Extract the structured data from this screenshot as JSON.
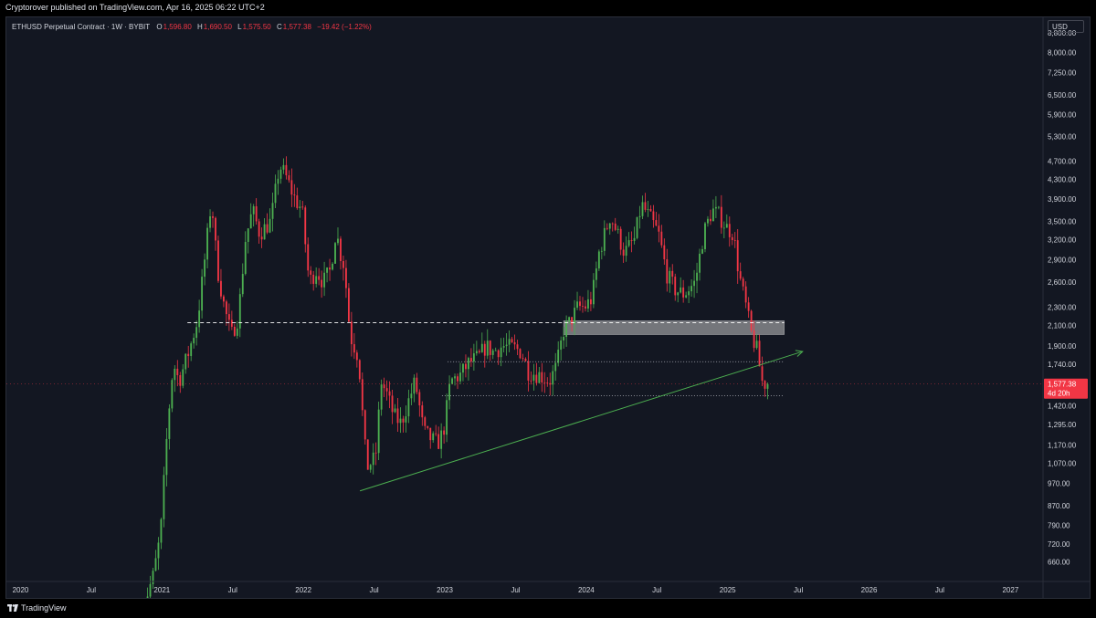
{
  "header": {
    "published_line": "Cryptorover published on TradingView.com, Apr 16, 2025 06:22 UTC+2"
  },
  "legend": {
    "symbol": "ETHUSD Perpetual Contract · 1W · BYBIT",
    "open_label": "O",
    "open": "1,596.80",
    "high_label": "H",
    "high": "1,690.50",
    "low_label": "L",
    "low": "1,575.50",
    "close_label": "C",
    "close": "1,577.38",
    "change": "−19.42 (−1.22%)"
  },
  "price_scale": {
    "currency": "USD",
    "last_price": "1,577.38",
    "countdown": "4d 20h"
  },
  "footer": {
    "brand": "TradingView"
  },
  "colors": {
    "up": "#4caf50",
    "down": "#f23645",
    "background": "#131722",
    "trendline": "#4caf50",
    "zone": "#c4c4c4"
  },
  "chart_data": {
    "type": "candlestick",
    "scale": "log",
    "ylim": [
      600,
      9500
    ],
    "xlim": [
      2019.9,
      2027.23
    ],
    "y_ticks": [
      {
        "value": 8800,
        "label": "8,800.00"
      },
      {
        "value": 8000,
        "label": "8,000.00"
      },
      {
        "value": 7250,
        "label": "7,250.00"
      },
      {
        "value": 6500,
        "label": "6,500.00"
      },
      {
        "value": 5900,
        "label": "5,900.00"
      },
      {
        "value": 5300,
        "label": "5,300.00"
      },
      {
        "value": 4700,
        "label": "4,700.00"
      },
      {
        "value": 4300,
        "label": "4,300.00"
      },
      {
        "value": 3900,
        "label": "3,900.00"
      },
      {
        "value": 3500,
        "label": "3,500.00"
      },
      {
        "value": 3200,
        "label": "3,200.00"
      },
      {
        "value": 2900,
        "label": "2,900.00"
      },
      {
        "value": 2600,
        "label": "2,600.00"
      },
      {
        "value": 2300,
        "label": "2,300.00"
      },
      {
        "value": 2100,
        "label": "2,100.00"
      },
      {
        "value": 1900,
        "label": "1,900.00"
      },
      {
        "value": 1740,
        "label": "1,740.00"
      },
      {
        "value": 1420,
        "label": "1,420.00"
      },
      {
        "value": 1295,
        "label": "1,295.00"
      },
      {
        "value": 1170,
        "label": "1,170.00"
      },
      {
        "value": 1070,
        "label": "1,070.00"
      },
      {
        "value": 970,
        "label": "970.00"
      },
      {
        "value": 870,
        "label": "870.00"
      },
      {
        "value": 790,
        "label": "790.00"
      },
      {
        "value": 720,
        "label": "720.00"
      },
      {
        "value": 660,
        "label": "660.00"
      }
    ],
    "x_ticks": [
      {
        "t": 2020.0,
        "label": "2020"
      },
      {
        "t": 2020.5,
        "label": "Jul"
      },
      {
        "t": 2021.0,
        "label": "2021"
      },
      {
        "t": 2021.5,
        "label": "Jul"
      },
      {
        "t": 2022.0,
        "label": "2022"
      },
      {
        "t": 2022.5,
        "label": "Jul"
      },
      {
        "t": 2023.0,
        "label": "2023"
      },
      {
        "t": 2023.5,
        "label": "Jul"
      },
      {
        "t": 2024.0,
        "label": "2024"
      },
      {
        "t": 2024.5,
        "label": "Jul"
      },
      {
        "t": 2025.0,
        "label": "2025"
      },
      {
        "t": 2025.5,
        "label": "Jul"
      },
      {
        "t": 2026.0,
        "label": "2026"
      },
      {
        "t": 2026.5,
        "label": "Jul"
      },
      {
        "t": 2027.0,
        "label": "2027"
      }
    ],
    "path_points": [
      [
        2020.85,
        500
      ],
      [
        2020.95,
        620
      ],
      [
        2021.0,
        760
      ],
      [
        2021.05,
        1300
      ],
      [
        2021.09,
        1750
      ],
      [
        2021.13,
        1600
      ],
      [
        2021.2,
        1850
      ],
      [
        2021.26,
        2150
      ],
      [
        2021.3,
        2700
      ],
      [
        2021.36,
        3900
      ],
      [
        2021.4,
        2800
      ],
      [
        2021.45,
        2300
      ],
      [
        2021.5,
        2000
      ],
      [
        2021.55,
        2200
      ],
      [
        2021.6,
        3200
      ],
      [
        2021.65,
        3700
      ],
      [
        2021.7,
        3300
      ],
      [
        2021.78,
        3500
      ],
      [
        2021.84,
        4600
      ],
      [
        2021.88,
        4400
      ],
      [
        2021.95,
        3900
      ],
      [
        2022.0,
        3700
      ],
      [
        2022.05,
        2600
      ],
      [
        2022.1,
        2750
      ],
      [
        2022.15,
        2600
      ],
      [
        2022.2,
        2750
      ],
      [
        2022.24,
        3350
      ],
      [
        2022.27,
        3000
      ],
      [
        2022.3,
        2800
      ],
      [
        2022.34,
        2000
      ],
      [
        2022.4,
        1800
      ],
      [
        2022.44,
        1200
      ],
      [
        2022.46,
        1050
      ],
      [
        2022.52,
        1100
      ],
      [
        2022.56,
        1600
      ],
      [
        2022.6,
        1500
      ],
      [
        2022.65,
        1350
      ],
      [
        2022.7,
        1300
      ],
      [
        2022.8,
        1600
      ],
      [
        2022.86,
        1250
      ],
      [
        2022.92,
        1200
      ],
      [
        2022.96,
        1180
      ],
      [
        2023.0,
        1250
      ],
      [
        2023.05,
        1600
      ],
      [
        2023.12,
        1650
      ],
      [
        2023.18,
        1750
      ],
      [
        2023.25,
        1800
      ],
      [
        2023.3,
        1900
      ],
      [
        2023.35,
        1850
      ],
      [
        2023.42,
        1900
      ],
      [
        2023.5,
        1880
      ],
      [
        2023.55,
        1850
      ],
      [
        2023.6,
        1680
      ],
      [
        2023.68,
        1650
      ],
      [
        2023.75,
        1600
      ],
      [
        2023.8,
        1720
      ],
      [
        2023.85,
        2050
      ],
      [
        2023.9,
        2150
      ],
      [
        2023.95,
        2300
      ],
      [
        2024.0,
        2300
      ],
      [
        2024.05,
        2400
      ],
      [
        2024.1,
        3000
      ],
      [
        2024.18,
        3600
      ],
      [
        2024.23,
        3300
      ],
      [
        2024.28,
        3000
      ],
      [
        2024.35,
        3200
      ],
      [
        2024.4,
        3800
      ],
      [
        2024.45,
        3600
      ],
      [
        2024.52,
        3300
      ],
      [
        2024.58,
        2700
      ],
      [
        2024.64,
        2500
      ],
      [
        2024.7,
        2450
      ],
      [
        2024.78,
        2600
      ],
      [
        2024.84,
        3300
      ],
      [
        2024.9,
        3700
      ],
      [
        2024.95,
        3600
      ],
      [
        2025.0,
        3400
      ],
      [
        2025.05,
        3300
      ],
      [
        2025.09,
        2700
      ],
      [
        2025.14,
        2300
      ],
      [
        2025.18,
        2000
      ],
      [
        2025.22,
        1850
      ],
      [
        2025.25,
        1600
      ],
      [
        2025.28,
        1577.38
      ]
    ],
    "annotations": {
      "resistance_dashed": {
        "price": 2130,
        "t_start": 2021.18,
        "t_end": 2025.4
      },
      "supply_zone": {
        "price_low": 2010,
        "price_high": 2150,
        "t_start": 2023.84,
        "t_end": 2025.4
      },
      "level_dotted_upper": {
        "price": 1760,
        "t_start": 2023.02,
        "t_end": 2025.4
      },
      "level_dotted_lower": {
        "price": 1490,
        "t_start": 2022.98,
        "t_end": 2025.4
      },
      "trendline": {
        "t1": 2022.4,
        "p1": 935,
        "t2": 2025.53,
        "p2": 1850
      }
    }
  }
}
